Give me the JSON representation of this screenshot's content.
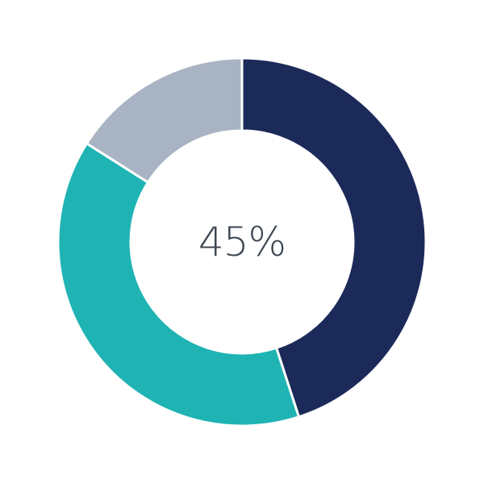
{
  "chart_data": {
    "type": "pie",
    "variant": "donut",
    "center_label": "45%",
    "title": "",
    "slices": [
      {
        "value": 45,
        "color": "#1c2a5a"
      },
      {
        "value": 39,
        "color": "#1fb3b4"
      },
      {
        "value": 16,
        "color": "#a8b3c3"
      }
    ],
    "start_angle": "12 o'clock",
    "direction": "clockwise",
    "legend": "none"
  }
}
